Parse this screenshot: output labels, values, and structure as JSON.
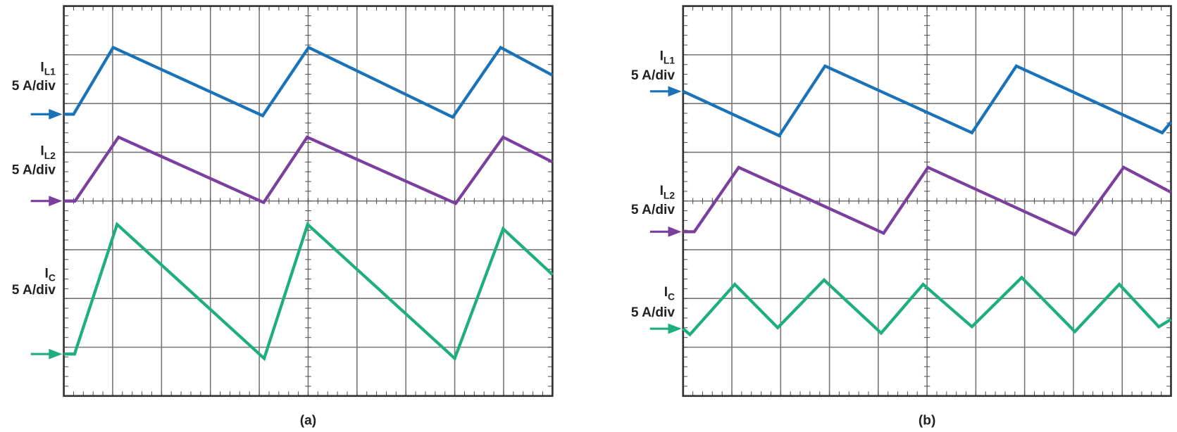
{
  "chart_data": [
    {
      "type": "line",
      "caption": "(a)",
      "xlim": [
        0,
        10
      ],
      "ylim": [
        0,
        8
      ],
      "xticks": [
        0,
        1,
        2,
        3,
        4,
        5,
        6,
        7,
        8,
        9,
        10
      ],
      "yticks": [
        0,
        1,
        2,
        3,
        4,
        5,
        6,
        7,
        8
      ],
      "grid": true,
      "series": [
        {
          "symbol": "I",
          "subscript": "L1",
          "scale": "5 A/div",
          "color": "#1a73b8",
          "ref_level": 5.78,
          "x": [
            0,
            0.2,
            1.01,
            4.07,
            5.01,
            7.96,
            8.94,
            10
          ],
          "values": [
            5.78,
            5.78,
            7.15,
            5.75,
            7.15,
            5.72,
            7.15,
            6.58
          ]
        },
        {
          "symbol": "I",
          "subscript": "L2",
          "scale": "5 A/div",
          "color": "#7b3f9e",
          "ref_level": 4.0,
          "x": [
            0,
            0.23,
            1.12,
            4.09,
            4.98,
            8.02,
            8.99,
            10
          ],
          "values": [
            4.0,
            4.0,
            5.31,
            3.97,
            5.31,
            3.95,
            5.31,
            4.8
          ]
        },
        {
          "symbol": "I",
          "subscript": "C",
          "scale": "5 A/div",
          "color": "#1fae7e",
          "ref_level": 0.86,
          "x": [
            0,
            0.22,
            1.09,
            4.1,
            4.99,
            8.0,
            8.99,
            10
          ],
          "values": [
            0.86,
            0.86,
            3.52,
            0.77,
            3.52,
            0.77,
            3.43,
            2.49
          ]
        }
      ]
    },
    {
      "type": "line",
      "caption": "(b)",
      "xlim": [
        0,
        10
      ],
      "ylim": [
        0,
        8
      ],
      "xticks": [
        0,
        1,
        2,
        3,
        4,
        5,
        6,
        7,
        8,
        9,
        10
      ],
      "yticks": [
        0,
        1,
        2,
        3,
        4,
        5,
        6,
        7,
        8
      ],
      "grid": true,
      "series": [
        {
          "symbol": "I",
          "subscript": "L1",
          "scale": "5 A/div",
          "color": "#1a73b8",
          "ref_level": 6.25,
          "x": [
            0,
            1.97,
            2.91,
            5.92,
            6.83,
            9.82,
            10
          ],
          "values": [
            6.25,
            5.34,
            6.77,
            5.4,
            6.77,
            5.4,
            5.62
          ]
        },
        {
          "symbol": "I",
          "subscript": "L2",
          "scale": "5 A/div",
          "color": "#7b3f9e",
          "ref_level": 3.37,
          "x": [
            0,
            0.23,
            1.14,
            4.11,
            5.02,
            8.03,
            9.03,
            10
          ],
          "values": [
            3.37,
            3.37,
            4.69,
            3.34,
            4.69,
            3.31,
            4.69,
            4.18
          ]
        },
        {
          "symbol": "I",
          "subscript": "C",
          "scale": "5 A/div",
          "color": "#1fae7e",
          "ref_level": 1.38,
          "x": [
            0,
            0.14,
            1.06,
            1.94,
            2.89,
            4.06,
            4.92,
            5.92,
            6.94,
            8.03,
            8.94,
            9.75,
            10
          ],
          "values": [
            1.38,
            1.26,
            2.29,
            1.4,
            2.38,
            1.29,
            2.29,
            1.42,
            2.43,
            1.32,
            2.29,
            1.42,
            1.57
          ]
        }
      ]
    }
  ]
}
